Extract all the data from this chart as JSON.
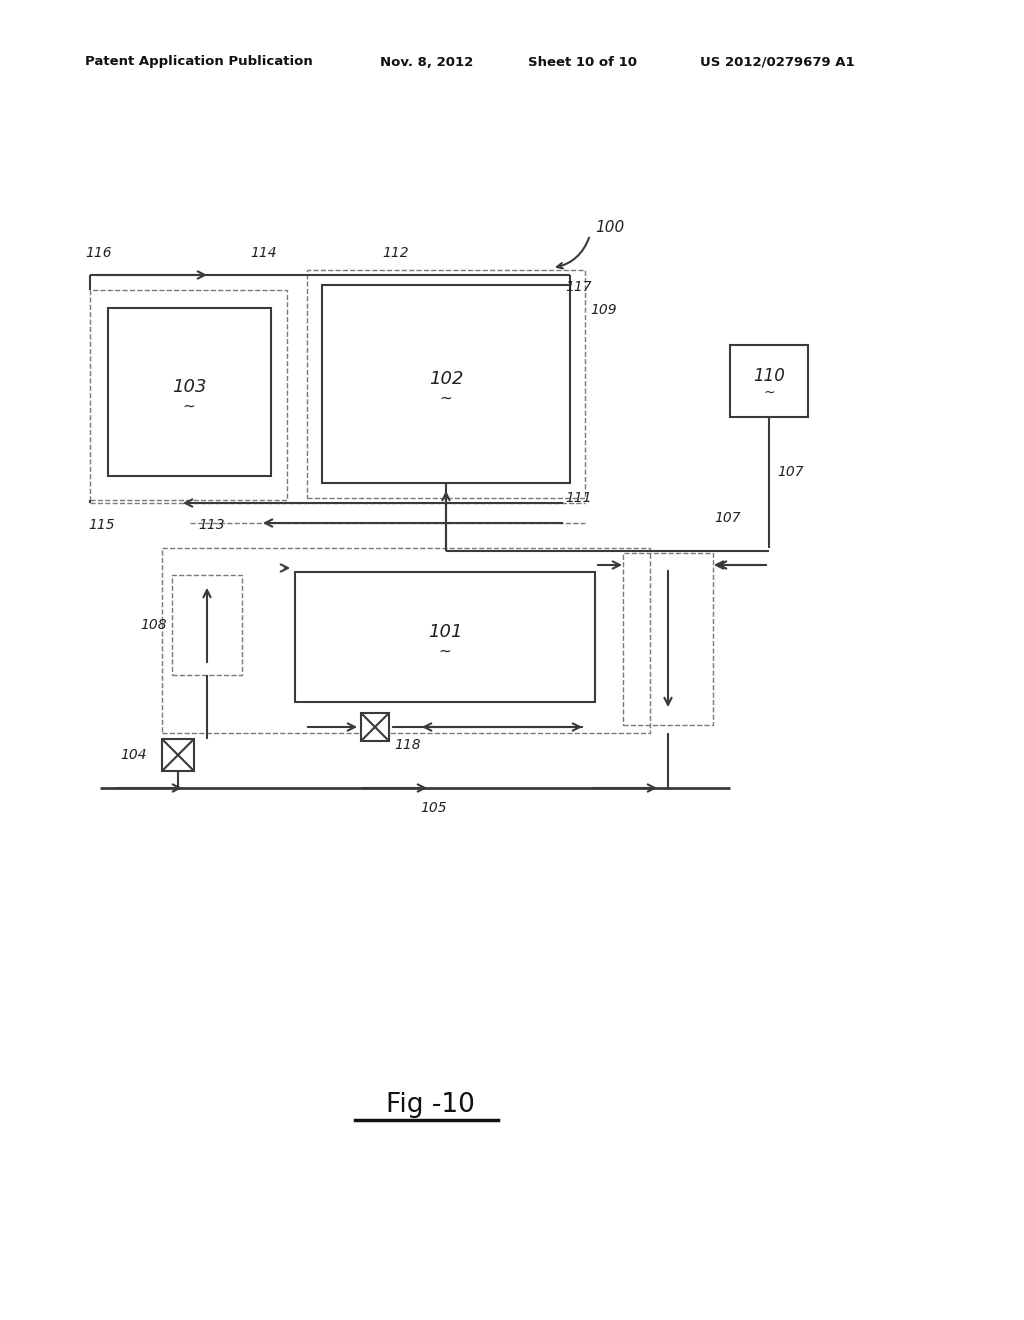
{
  "background_color": "#ffffff",
  "header_text": "Patent Application Publication",
  "header_date": "Nov. 8, 2012",
  "header_sheet": "Sheet 10 of 10",
  "header_patent": "US 2012/0279679 A1",
  "figure_label": "Fig -10",
  "lc": "#3a3a3a",
  "dc": "#7a7a7a"
}
